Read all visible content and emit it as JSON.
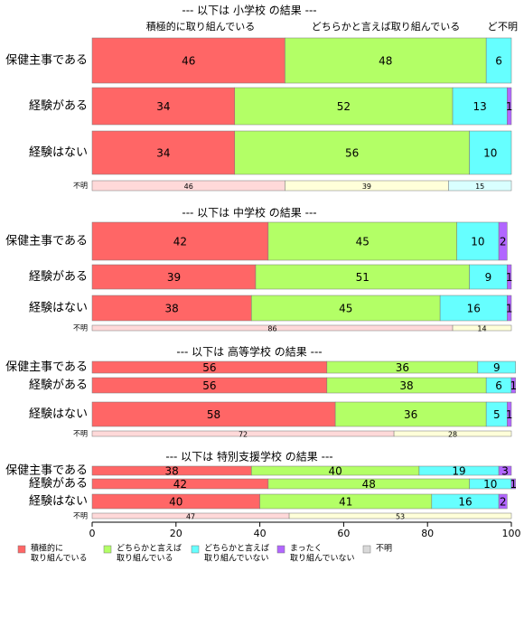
{
  "chart_data": {
    "type": "stacked_bar",
    "xlim": [
      0,
      100
    ],
    "xticks": [
      0,
      20,
      40,
      60,
      80,
      100
    ],
    "series": [
      {
        "name": [
          "積極的に",
          "取り組んでいる"
        ],
        "color": "#ff6666"
      },
      {
        "name": [
          "どちらかと言えば",
          "取り組んでいる"
        ],
        "color": "#b3ff66"
      },
      {
        "name": [
          "どちらかと言えば",
          "取り組んでいない"
        ],
        "color": "#66ffff"
      },
      {
        "name": [
          "まったく",
          "取り組んでいない"
        ],
        "color": "#b266ff"
      },
      {
        "name": [
          "不明"
        ],
        "color": "#d9d9d9"
      }
    ],
    "unknown_colors": [
      "#ffd9d9",
      "#ffffd9",
      "#d9ffff"
    ],
    "headers": [
      "積極的に取り組んでいる",
      "どちらかと言えば取り組んでいる",
      "ど",
      "不明"
    ],
    "panels": [
      {
        "title": "--- 以下は 小学校 の結果 ---",
        "rows": [
          {
            "label": "保健主事である",
            "values": [
              46,
              48,
              6
            ]
          },
          {
            "label": "経験がある",
            "values": [
              34,
              52,
              13,
              1
            ]
          },
          {
            "label": "経験はない",
            "values": [
              34,
              56,
              10
            ]
          }
        ],
        "unknown": {
          "label": "不明",
          "values": [
            46,
            39,
            15
          ]
        }
      },
      {
        "title": "--- 以下は 中学校 の結果 ---",
        "rows": [
          {
            "label": "保健主事である",
            "values": [
              42,
              45,
              10,
              2
            ]
          },
          {
            "label": "経験がある",
            "values": [
              39,
              51,
              9,
              1
            ]
          },
          {
            "label": "経験はない",
            "values": [
              38,
              45,
              16,
              1
            ]
          }
        ],
        "unknown": {
          "label": "不明",
          "values": [
            86,
            14
          ]
        }
      },
      {
        "title": "--- 以下は 高等学校 の結果 ---",
        "rows": [
          {
            "label": "保健主事である",
            "values": [
              56,
              36,
              9
            ]
          },
          {
            "label": "経験がある",
            "values": [
              56,
              38,
              6,
              1
            ]
          },
          {
            "label": "経験はない",
            "values": [
              58,
              36,
              5,
              1
            ]
          }
        ],
        "unknown": {
          "label": "不明",
          "values": [
            72,
            28
          ]
        }
      },
      {
        "title": "--- 以下は 特別支援学校 の結果 ---",
        "rows": [
          {
            "label": "保健主事である",
            "values": [
              38,
              40,
              19,
              3
            ]
          },
          {
            "label": "経験がある",
            "values": [
              42,
              48,
              10,
              1
            ]
          },
          {
            "label": "経験はない",
            "values": [
              40,
              41,
              16,
              2
            ]
          }
        ],
        "unknown": {
          "label": "不明",
          "values": [
            47,
            53
          ]
        }
      }
    ]
  }
}
